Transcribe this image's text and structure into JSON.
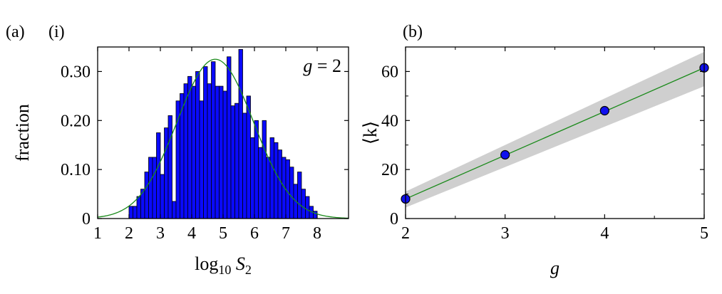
{
  "panels": {
    "a_label": "(a)",
    "a_sub_label": "(i)",
    "b_label": "(b)"
  },
  "chart_data": [
    {
      "type": "bar",
      "subtype": "histogram",
      "panel": "(a)",
      "annotation_text": "g = 2",
      "xlabel": "log10 S2",
      "ylabel": "fraction",
      "xlim": [
        1,
        9
      ],
      "ylim": [
        0,
        0.35
      ],
      "xticks": [
        1,
        2,
        3,
        4,
        5,
        6,
        7,
        8
      ],
      "yticks": [
        0,
        0.1,
        0.2,
        0.3
      ],
      "ytick_labels": [
        "0",
        "0.10",
        "0.20",
        "0.30"
      ],
      "bin_width": 0.125,
      "bin_start": 2.0,
      "values": [
        0.025,
        0.025,
        0.045,
        0.06,
        0.095,
        0.125,
        0.125,
        0.175,
        0.09,
        0.185,
        0.21,
        0.035,
        0.24,
        0.255,
        0.275,
        0.29,
        0.27,
        0.3,
        0.24,
        0.31,
        0.275,
        0.32,
        0.27,
        0.27,
        0.26,
        0.33,
        0.23,
        0.235,
        0.345,
        0.215,
        0.25,
        0.165,
        0.2,
        0.145,
        0.2,
        0.125,
        0.165,
        0.155,
        0.14,
        0.125,
        0.12,
        0.105,
        0.07,
        0.095,
        0.06,
        0.045,
        0.025,
        0.015
      ],
      "fit_curve": {
        "type": "gaussian",
        "mean": 4.75,
        "sd": 1.22,
        "amplitude": 0.325,
        "color": "#1a8a1a"
      },
      "bar_color": "#0a0aff",
      "bar_edge_color": "#000000",
      "grid": false
    },
    {
      "type": "scatter",
      "panel": "(b)",
      "xlabel": "g",
      "ylabel": "⟨k⟩",
      "xlim": [
        2,
        5
      ],
      "ylim": [
        0,
        70
      ],
      "xticks": [
        2,
        3,
        4,
        5
      ],
      "yticks": [
        0,
        20,
        40,
        60
      ],
      "x": [
        2,
        3,
        4,
        5
      ],
      "y": [
        8,
        26,
        44,
        61.5
      ],
      "fit_line": {
        "x": [
          2,
          5
        ],
        "y": [
          8,
          61.5
        ],
        "color": "#1a8a1a"
      },
      "confidence_band": {
        "x": [
          2,
          5
        ],
        "lower": [
          4.5,
          54
        ],
        "upper": [
          11,
          68
        ],
        "color": "#cfcfcf"
      },
      "marker_color": "#1010ee",
      "marker_edge_color": "#000000",
      "grid": false
    }
  ]
}
